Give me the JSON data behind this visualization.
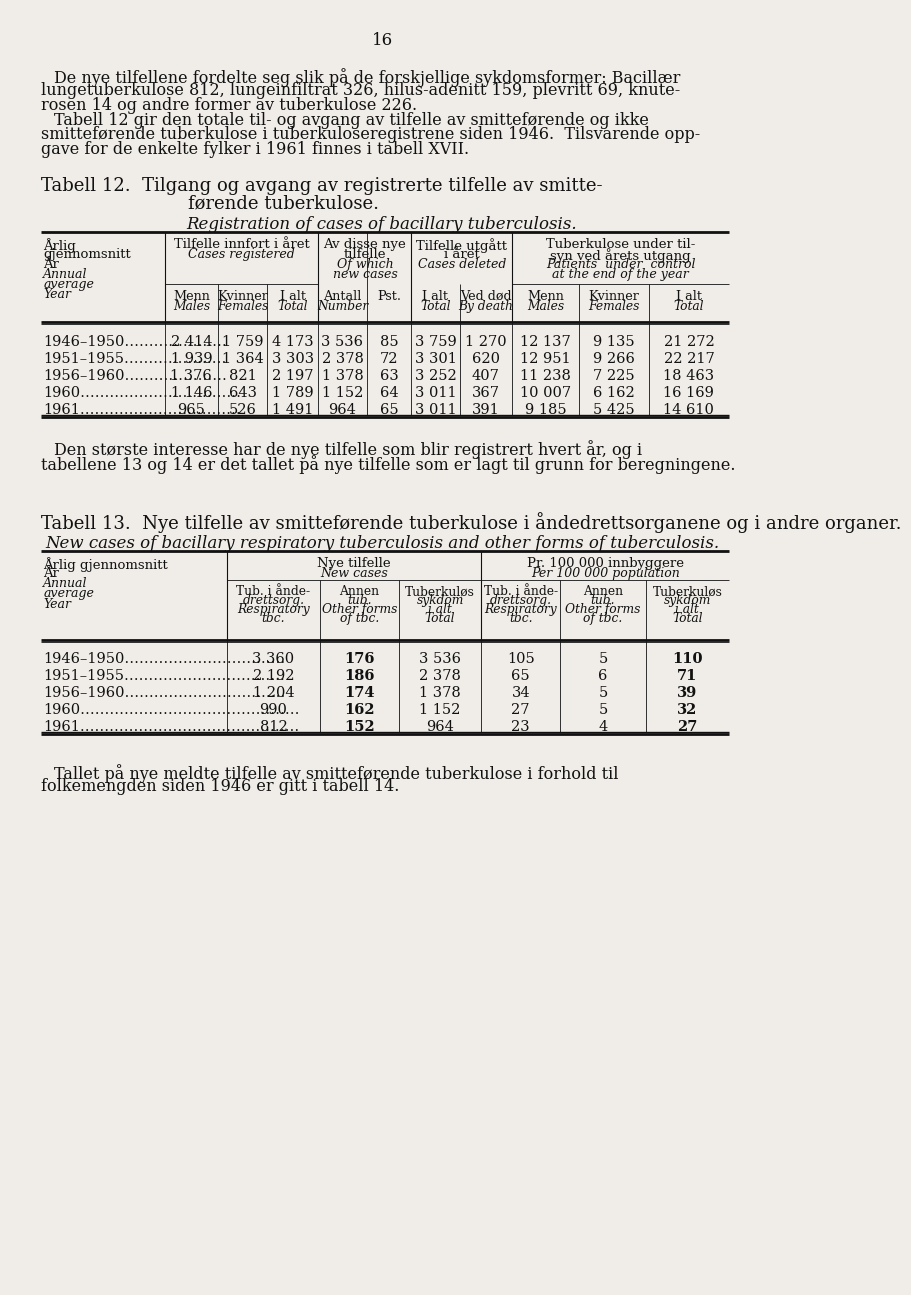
{
  "page_number": "16",
  "bg_color": "#f0ede8",
  "text_color": "#111111",
  "intro_lines1": [
    "De nye tilfellene fordelte seg slik på de forskjellige sykdomsformer: Bacillær",
    "lungetuberkulose 812, lungeinfiltrat 326, hilus-adenitt 159, plevritt 69, knute-",
    "rosen 14 og andre former av tuberkulose 226."
  ],
  "intro_lines2": [
    "Tabell 12 gir den totale til- og avgang av tilfelle av smitteførende og ikke",
    "smitteførende tuberkulose i tuberkuloseregistrene siden 1946.  Tilsvarende opp-",
    "gave for de enkelte fylker i 1961 finnes i tabell XVII."
  ],
  "t12_title1": "Tabell 12.  Tilgang og avgang av registrerte tilfelle av smitte-",
  "t12_title2": "førende tuberkulose.",
  "t12_subtitle": "Registration of cases of bacillary tuberculosis.",
  "t12_rows": [
    [
      "1946–1950…………………",
      "2 414",
      "1 759",
      "4 173",
      "3 536",
      "85",
      "3 759",
      "1 270",
      "12 137",
      "9 135",
      "21 272"
    ],
    [
      "1951–1955…………………",
      "1 939",
      "1 364",
      "3 303",
      "2 378",
      "72",
      "3 301",
      "620",
      "12 951",
      "9 266",
      "22 217"
    ],
    [
      "1956–1960…………………",
      "1 376",
      "821",
      "2 197",
      "1 378",
      "63",
      "3 252",
      "407",
      "11 238",
      "7 225",
      "18 463"
    ],
    [
      "1960……………………………",
      "1 146",
      "643",
      "1 789",
      "1 152",
      "64",
      "3 011",
      "367",
      "10 007",
      "6 162",
      "16 169"
    ],
    [
      "1961……………………………",
      "965",
      "526",
      "1 491",
      "964",
      "65",
      "3 011",
      "391",
      "9 185",
      "5 425",
      "14 610"
    ]
  ],
  "between_lines": [
    "Den største interesse har de nye tilfelle som blir registrert hvert år, og i",
    "tabellene 13 og 14 er det tallet på nye tilfelle som er lagt til grunn for beregningene."
  ],
  "t13_title1": "Tabell 13.  Nye tilfelle av smitteførende tuberkulose i åndedrettsorganene og i andre organer.",
  "t13_title2_line1": "Tabell 13.  Nye tilfelle av smitteførende tuberkulose i åndedrettsorganene og i andre organer.",
  "t13_subtitle": "New cases of bacillary respiratory tuberculosis and other forms of tuberculosis.",
  "t13_rows": [
    [
      "1946–1950……………………………",
      "3 360",
      "176",
      "3 536",
      "105",
      "5",
      "110"
    ],
    [
      "1951–1955……………………………",
      "2 192",
      "186",
      "2 378",
      "65",
      "6",
      "71"
    ],
    [
      "1956–1960……………………………",
      "1 204",
      "174",
      "1 378",
      "34",
      "5",
      "39"
    ],
    [
      "1960………………………………………",
      "990",
      "162",
      "1 152",
      "27",
      "5",
      "32"
    ],
    [
      "1961………………………………………",
      "812",
      "152",
      "964",
      "23",
      "4",
      "27"
    ]
  ],
  "end_lines": [
    "Tallet på nye meldte tilfelle av smitteførende tuberkulose i forhold til",
    "folkemengden siden 1946 er gitt i tabell 14."
  ]
}
